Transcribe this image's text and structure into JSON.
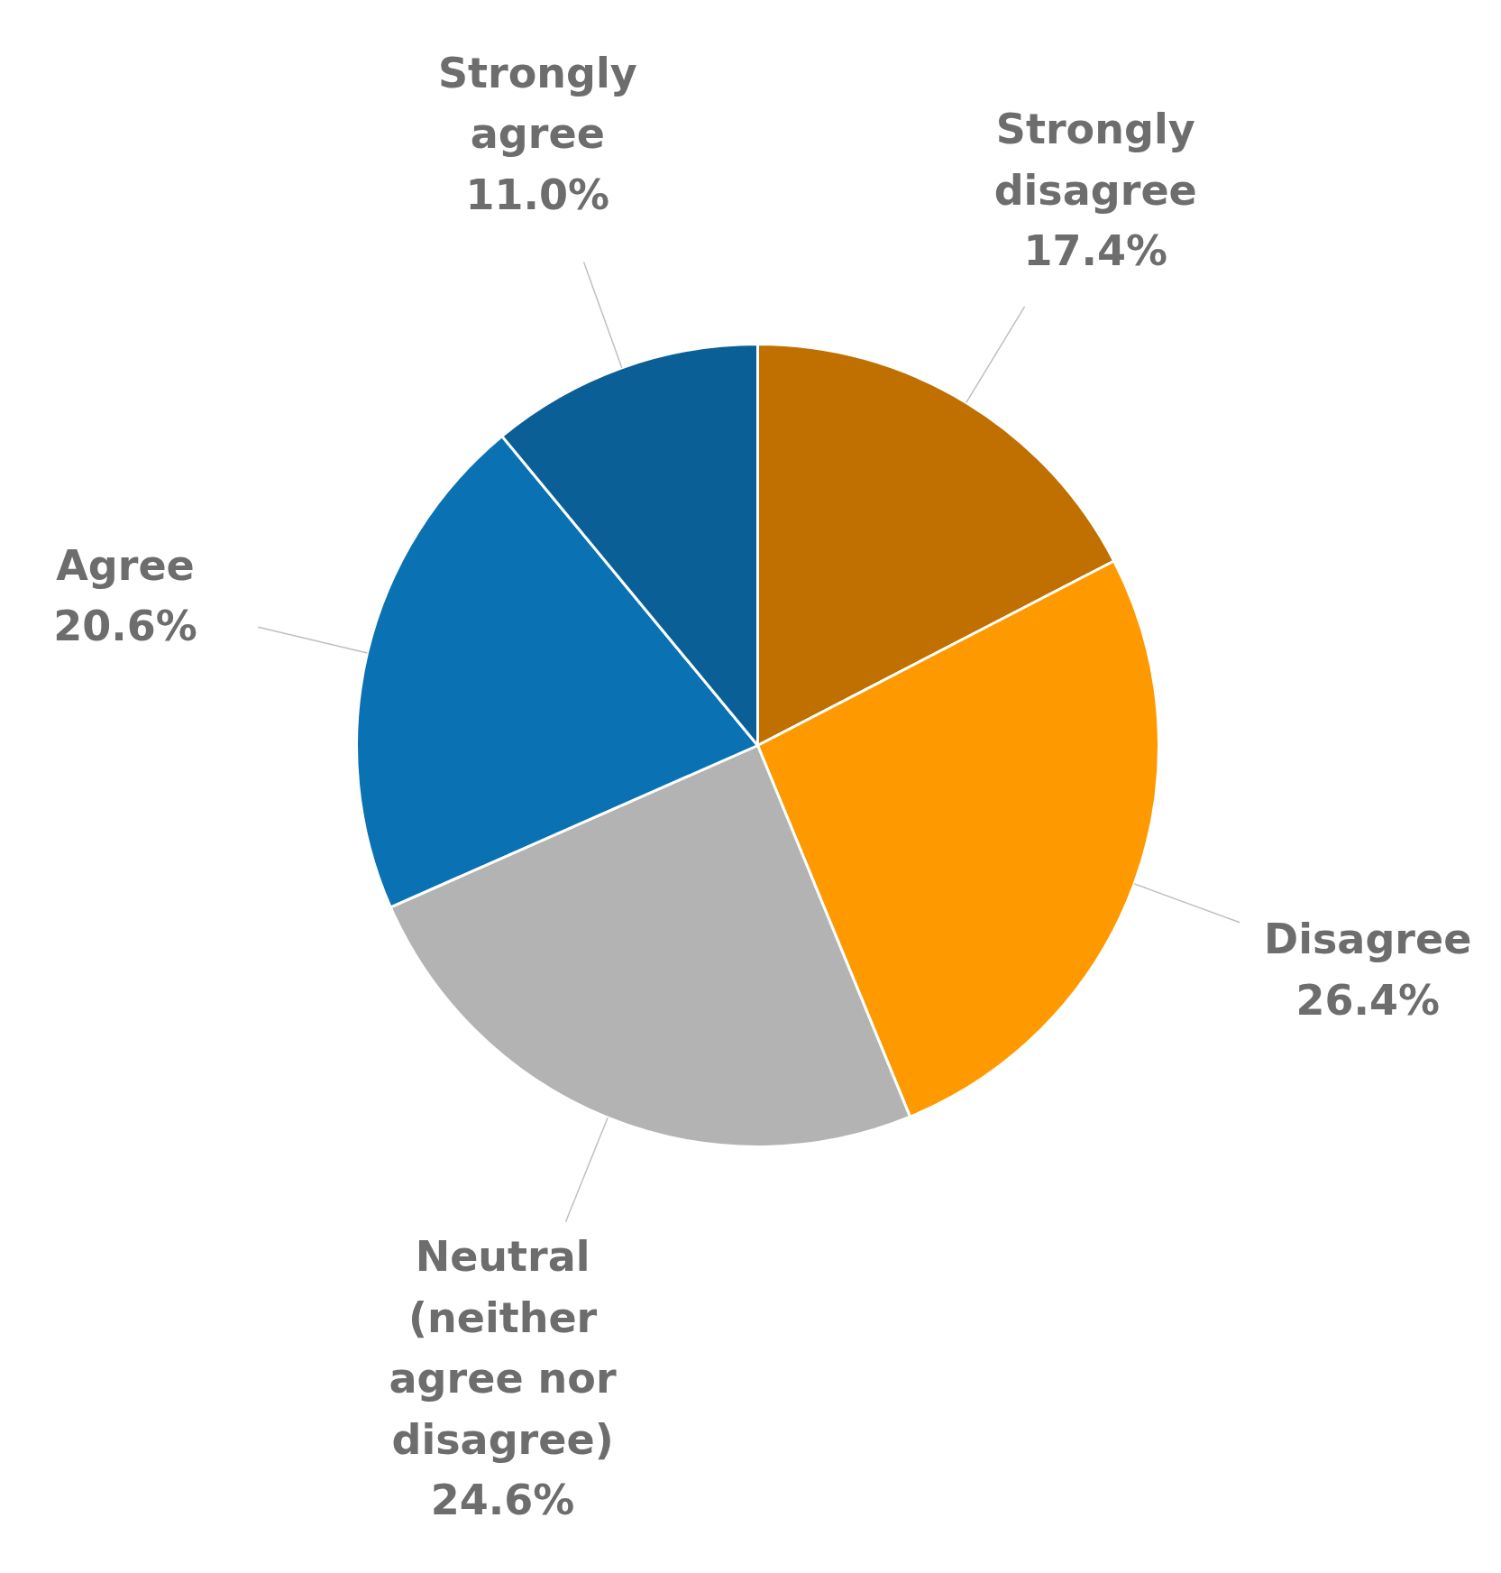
{
  "chart_data": {
    "type": "pie",
    "categories": [
      "Strongly disagree",
      "Disagree",
      "Neutral (neither agree nor disagree)",
      "Agree",
      "Strongly agree"
    ],
    "values": [
      17.4,
      26.4,
      24.6,
      20.6,
      11.0
    ],
    "value_labels": [
      "17.4%",
      "26.4%",
      "24.6%",
      "20.6%",
      "11.0%"
    ],
    "colors": [
      "#bf7000",
      "#ff9900",
      "#b3b3b4",
      "#0a72b3",
      "#0a5f97"
    ]
  }
}
